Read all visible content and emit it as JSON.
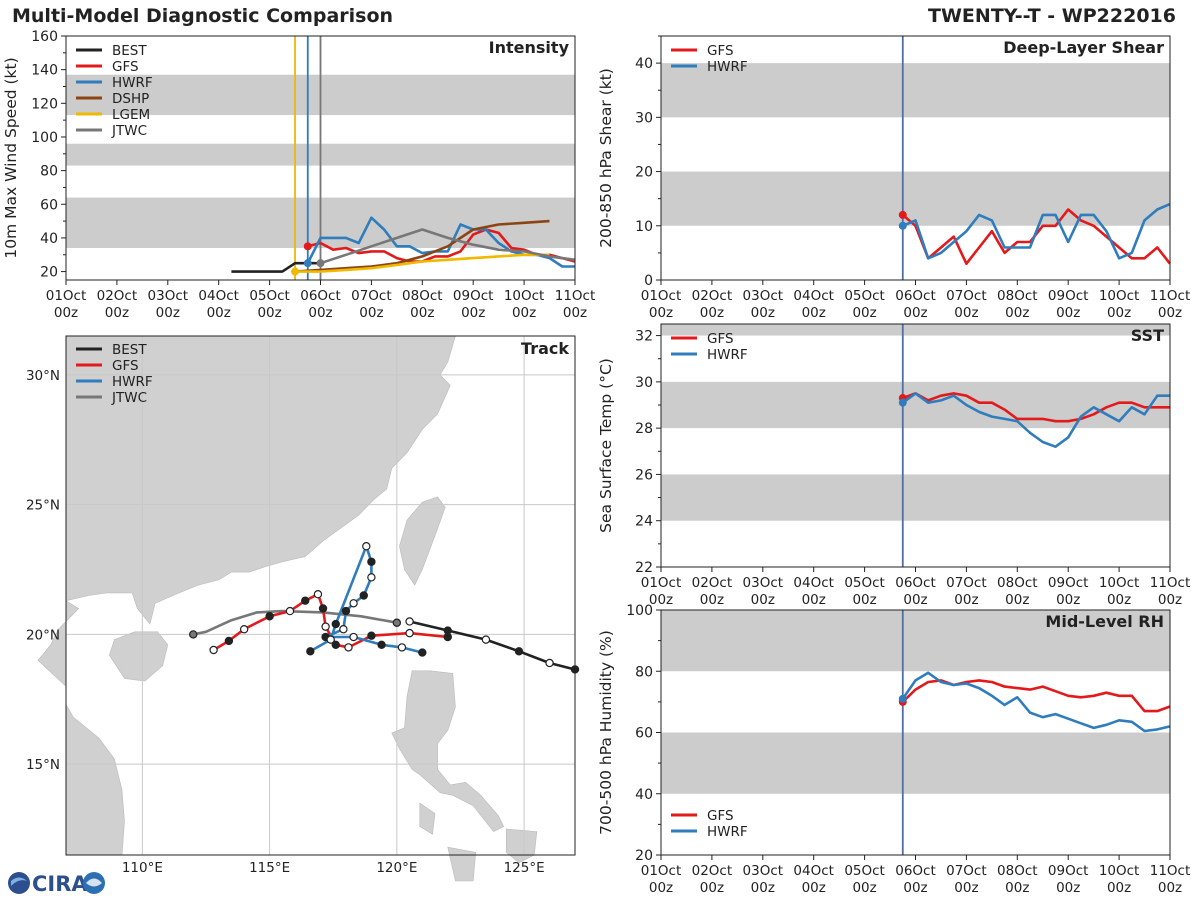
{
  "header": {
    "left_title": "Multi-Model Diagnostic Comparison",
    "right_title": "TWENTY--T - WP222016"
  },
  "colors": {
    "BEST": "#222222",
    "GFS": "#e31a1c",
    "HWRF": "#2f7dbd",
    "DSHP": "#8b4513",
    "LGEM": "#f0b800",
    "JTWC": "#777777",
    "band": "#cccccc",
    "land": "#d0d0d0",
    "grid": "#c8c8c8",
    "vline": "#4f6fa0"
  },
  "logo": {
    "text": "CIRA"
  },
  "chart_data": [
    {
      "id": "intensity",
      "type": "line",
      "title": "Intensity",
      "ylabel": "10m Max Wind Speed (kt)",
      "xlim": [
        0,
        10
      ],
      "ylim": [
        15,
        160
      ],
      "yticks": [
        20,
        40,
        60,
        80,
        100,
        120,
        140,
        160
      ],
      "xtick_labels": [
        "01Oct\n00z",
        "02Oct\n00z",
        "03Oct\n00z",
        "04Oct\n00z",
        "05Oct\n00z",
        "06Oct\n00z",
        "07Oct\n00z",
        "08Oct\n00z",
        "09Oct\n00z",
        "10Oct\n00z",
        "11Oct\n00z"
      ],
      "bands": [
        [
          34,
          64
        ],
        [
          83,
          96
        ],
        [
          113,
          137
        ]
      ],
      "vlines": [
        {
          "x": 4.5,
          "color": "LGEM"
        },
        {
          "x": 4.75,
          "color": "HWRF"
        },
        {
          "x": 5.0,
          "color": "JTWC"
        }
      ],
      "legend": [
        "BEST",
        "GFS",
        "HWRF",
        "DSHP",
        "LGEM",
        "JTWC"
      ],
      "legend_loc": "upper-left",
      "series": [
        {
          "name": "BEST",
          "x": [
            3.25,
            3.5,
            4.0,
            4.25,
            4.5,
            4.75,
            5.0
          ],
          "y": [
            20,
            20,
            20,
            20,
            25,
            25,
            25
          ]
        },
        {
          "name": "GFS",
          "x": [
            4.75,
            5.0,
            5.25,
            5.5,
            5.75,
            6.0,
            6.25,
            6.5,
            6.75,
            7.0,
            7.25,
            7.5,
            7.75,
            8.0,
            8.25,
            8.5,
            8.75,
            9.0,
            9.25,
            9.5,
            9.75,
            10.0
          ],
          "y": [
            35,
            37,
            33,
            34,
            31,
            32,
            32,
            28,
            26,
            26,
            29,
            29,
            32,
            42,
            45,
            43,
            34,
            33,
            30,
            30,
            28,
            26
          ],
          "start_marker": true
        },
        {
          "name": "HWRF",
          "x": [
            4.75,
            5.0,
            5.25,
            5.5,
            5.75,
            6.0,
            6.25,
            6.5,
            6.75,
            7.0,
            7.25,
            7.5,
            7.75,
            8.0,
            8.25,
            8.5,
            8.75,
            9.0,
            9.25,
            9.5,
            9.75,
            10.0
          ],
          "y": [
            25,
            40,
            40,
            40,
            37,
            52,
            45,
            35,
            35,
            31,
            32,
            32,
            48,
            45,
            45,
            37,
            32,
            30,
            30,
            28,
            23,
            23
          ],
          "start_marker": true
        },
        {
          "name": "DSHP",
          "x": [
            4.5,
            5.0,
            5.5,
            6.0,
            6.5,
            7.0,
            7.5,
            8.0,
            8.5,
            9.0,
            9.5
          ],
          "y": [
            20,
            21,
            22,
            23,
            25,
            29,
            35,
            45,
            48,
            49,
            50
          ]
        },
        {
          "name": "LGEM",
          "x": [
            4.5,
            5.0,
            5.5,
            6.0,
            6.5,
            7.0,
            7.5,
            8.0,
            8.5,
            9.0,
            9.5
          ],
          "y": [
            20,
            20,
            21,
            22,
            24,
            26,
            27,
            28,
            29,
            30,
            30
          ],
          "start_marker": true
        },
        {
          "name": "JTWC",
          "x": [
            5.0,
            5.5,
            6.0,
            6.5,
            7.0,
            7.5,
            8.0,
            8.5,
            9.0,
            9.5,
            10.0
          ],
          "y": [
            25,
            30,
            35,
            40,
            45,
            40,
            36,
            33,
            32,
            29,
            27
          ],
          "start_marker": true
        }
      ]
    },
    {
      "id": "shear",
      "type": "line",
      "title": "Deep-Layer Shear",
      "ylabel": "200-850 hPa Shear (kt)",
      "xlim": [
        0,
        10
      ],
      "ylim": [
        0,
        45
      ],
      "yticks": [
        0,
        10,
        20,
        30,
        40
      ],
      "xtick_labels": [
        "01Oct\n00z",
        "02Oct\n00z",
        "03Oct\n00z",
        "04Oct\n00z",
        "05Oct\n00z",
        "06Oct\n00z",
        "07Oct\n00z",
        "08Oct\n00z",
        "09Oct\n00z",
        "10Oct\n00z",
        "11Oct\n00z"
      ],
      "bands": [
        [
          10,
          20
        ],
        [
          30,
          40
        ]
      ],
      "vlines": [
        {
          "x": 4.75,
          "color": "vline"
        }
      ],
      "legend": [
        "GFS",
        "HWRF"
      ],
      "legend_loc": "upper-left",
      "series": [
        {
          "name": "GFS",
          "x": [
            4.75,
            5.0,
            5.25,
            5.5,
            5.75,
            6.0,
            6.25,
            6.5,
            6.75,
            7.0,
            7.25,
            7.5,
            7.75,
            8.0,
            8.25,
            8.5,
            8.75,
            9.0,
            9.25,
            9.5,
            9.75,
            10.0
          ],
          "y": [
            12,
            10,
            4,
            6,
            8,
            3,
            6,
            9,
            5,
            7,
            7,
            10,
            10,
            13,
            11,
            10,
            8,
            6,
            4,
            4,
            6,
            3
          ],
          "start_marker": true
        },
        {
          "name": "HWRF",
          "x": [
            4.75,
            5.0,
            5.25,
            5.5,
            5.75,
            6.0,
            6.25,
            6.5,
            6.75,
            7.0,
            7.25,
            7.5,
            7.75,
            8.0,
            8.25,
            8.5,
            8.75,
            9.0,
            9.25,
            9.5,
            9.75,
            10.0
          ],
          "y": [
            10,
            11,
            4,
            5,
            7,
            9,
            12,
            11,
            6,
            6,
            6,
            12,
            12,
            7,
            12,
            12,
            9,
            4,
            5,
            11,
            13,
            14
          ],
          "start_marker": true
        }
      ]
    },
    {
      "id": "sst",
      "type": "line",
      "title": "SST",
      "ylabel": "Sea Surface Temp (°C)",
      "xlim": [
        0,
        10
      ],
      "ylim": [
        22,
        32.5
      ],
      "yticks": [
        22,
        24,
        26,
        28,
        30,
        32
      ],
      "xtick_labels": [
        "01Oct\n00z",
        "02Oct\n00z",
        "03Oct\n00z",
        "04Oct\n00z",
        "05Oct\n00z",
        "06Oct\n00z",
        "07Oct\n00z",
        "08Oct\n00z",
        "09Oct\n00z",
        "10Oct\n00z",
        "11Oct\n00z"
      ],
      "bands": [
        [
          24,
          26
        ],
        [
          28,
          30
        ],
        [
          32,
          32.5
        ]
      ],
      "vlines": [
        {
          "x": 4.75,
          "color": "vline"
        }
      ],
      "legend": [
        "GFS",
        "HWRF"
      ],
      "legend_loc": "upper-left",
      "series": [
        {
          "name": "GFS",
          "x": [
            4.75,
            5.0,
            5.25,
            5.5,
            5.75,
            6.0,
            6.25,
            6.5,
            6.75,
            7.0,
            7.25,
            7.5,
            7.75,
            8.0,
            8.25,
            8.5,
            8.75,
            9.0,
            9.25,
            9.5,
            9.75,
            10.0
          ],
          "y": [
            29.3,
            29.5,
            29.2,
            29.4,
            29.5,
            29.4,
            29.1,
            29.1,
            28.8,
            28.4,
            28.4,
            28.4,
            28.3,
            28.3,
            28.4,
            28.6,
            28.9,
            29.1,
            29.1,
            28.9,
            28.9,
            28.9
          ],
          "start_marker": true
        },
        {
          "name": "HWRF",
          "x": [
            4.75,
            5.0,
            5.25,
            5.5,
            5.75,
            6.0,
            6.25,
            6.5,
            6.75,
            7.0,
            7.25,
            7.5,
            7.75,
            8.0,
            8.25,
            8.5,
            8.75,
            9.0,
            9.25,
            9.5,
            9.75,
            10.0
          ],
          "y": [
            29.1,
            29.5,
            29.1,
            29.2,
            29.4,
            29.0,
            28.7,
            28.5,
            28.4,
            28.3,
            27.8,
            27.4,
            27.2,
            27.6,
            28.5,
            28.9,
            28.6,
            28.3,
            28.9,
            28.6,
            29.4,
            29.4
          ],
          "start_marker": true
        }
      ]
    },
    {
      "id": "rh",
      "type": "line",
      "title": "Mid-Level RH",
      "ylabel": "700-500 hPa Humidity (%)",
      "xlim": [
        0,
        10
      ],
      "ylim": [
        20,
        100
      ],
      "yticks": [
        20,
        40,
        60,
        80,
        100
      ],
      "xtick_labels": [
        "01Oct\n00z",
        "02Oct\n00z",
        "03Oct\n00z",
        "04Oct\n00z",
        "05Oct\n00z",
        "06Oct\n00z",
        "07Oct\n00z",
        "08Oct\n00z",
        "09Oct\n00z",
        "10Oct\n00z",
        "11Oct\n00z"
      ],
      "bands": [
        [
          40,
          60
        ],
        [
          80,
          100
        ]
      ],
      "vlines": [
        {
          "x": 4.75,
          "color": "vline"
        }
      ],
      "legend": [
        "GFS",
        "HWRF"
      ],
      "legend_loc": "lower-left",
      "series": [
        {
          "name": "GFS",
          "x": [
            4.75,
            5.0,
            5.25,
            5.5,
            5.75,
            6.0,
            6.25,
            6.5,
            6.75,
            7.0,
            7.25,
            7.5,
            7.75,
            8.0,
            8.25,
            8.5,
            8.75,
            9.0,
            9.25,
            9.5,
            9.75,
            10.0
          ],
          "y": [
            70,
            74,
            76.5,
            77,
            75.5,
            76.5,
            77,
            76.5,
            75,
            74.5,
            74,
            75,
            73.5,
            72,
            71.5,
            72,
            73,
            72,
            72,
            67,
            67,
            68.5
          ],
          "start_marker": true
        },
        {
          "name": "HWRF",
          "x": [
            4.75,
            5.0,
            5.25,
            5.5,
            5.75,
            6.0,
            6.25,
            6.5,
            6.75,
            7.0,
            7.25,
            7.5,
            7.75,
            8.0,
            8.25,
            8.5,
            8.75,
            9.0,
            9.25,
            9.5,
            9.75,
            10.0
          ],
          "y": [
            71,
            77,
            79.5,
            76.5,
            75.5,
            76,
            74.5,
            72,
            69,
            71.5,
            66.5,
            65,
            66,
            64.5,
            63,
            61.5,
            62.5,
            64,
            63.5,
            60.5,
            61,
            62
          ],
          "start_marker": true
        }
      ]
    },
    {
      "id": "track",
      "type": "map",
      "title": "Track",
      "lon_range": [
        107,
        127
      ],
      "lat_range": [
        11.5,
        31.5
      ],
      "lon_ticks": [
        110,
        115,
        120,
        125
      ],
      "lat_ticks": [
        15,
        20,
        25,
        30
      ],
      "lon_labels": [
        "110°E",
        "115°E",
        "120°E",
        "125°E"
      ],
      "lat_labels": [
        "15°N",
        "20°N",
        "25°N",
        "30°N"
      ],
      "legend": [
        "BEST",
        "GFS",
        "HWRF",
        "JTWC"
      ],
      "legend_loc": "upper-left",
      "tracks": [
        {
          "name": "BEST",
          "points": [
            [
              127.0,
              18.65
            ],
            [
              126.0,
              18.9
            ],
            [
              124.8,
              19.35
            ],
            [
              123.5,
              19.8
            ],
            [
              122.0,
              20.15
            ],
            [
              120.5,
              20.5
            ]
          ],
          "markers": "mixed"
        },
        {
          "name": "GFS",
          "points": [
            [
              122.0,
              19.9
            ],
            [
              120.5,
              20.05
            ],
            [
              119.0,
              19.95
            ],
            [
              118.1,
              19.5
            ],
            [
              117.6,
              19.6
            ],
            [
              117.2,
              20.3
            ],
            [
              117.1,
              21.0
            ],
            [
              116.9,
              21.55
            ],
            [
              116.4,
              21.3
            ],
            [
              115.8,
              20.9
            ],
            [
              115.0,
              20.7
            ],
            [
              114.0,
              20.2
            ],
            [
              113.4,
              19.75
            ],
            [
              112.8,
              19.4
            ]
          ],
          "markers": "mixed"
        },
        {
          "name": "HWRF",
          "points": [
            [
              121.0,
              19.3
            ],
            [
              120.2,
              19.5
            ],
            [
              119.4,
              19.6
            ],
            [
              118.3,
              19.9
            ],
            [
              117.2,
              19.9
            ],
            [
              117.9,
              20.2
            ],
            [
              118.0,
              20.9
            ],
            [
              118.3,
              21.2
            ],
            [
              118.7,
              21.5
            ],
            [
              119.0,
              22.2
            ],
            [
              119.0,
              22.8
            ],
            [
              118.8,
              23.4
            ],
            [
              117.6,
              20.4
            ],
            [
              117.4,
              19.8
            ],
            [
              116.6,
              19.35
            ]
          ],
          "markers": "mixed"
        },
        {
          "name": "JTWC",
          "points": [
            [
              120.0,
              20.45
            ],
            [
              118.6,
              20.7
            ],
            [
              117.1,
              20.85
            ],
            [
              115.5,
              20.9
            ],
            [
              114.5,
              20.85
            ],
            [
              113.5,
              20.55
            ],
            [
              112.5,
              20.1
            ],
            [
              112.0,
              20.0
            ]
          ],
          "markers": "none"
        }
      ]
    }
  ]
}
